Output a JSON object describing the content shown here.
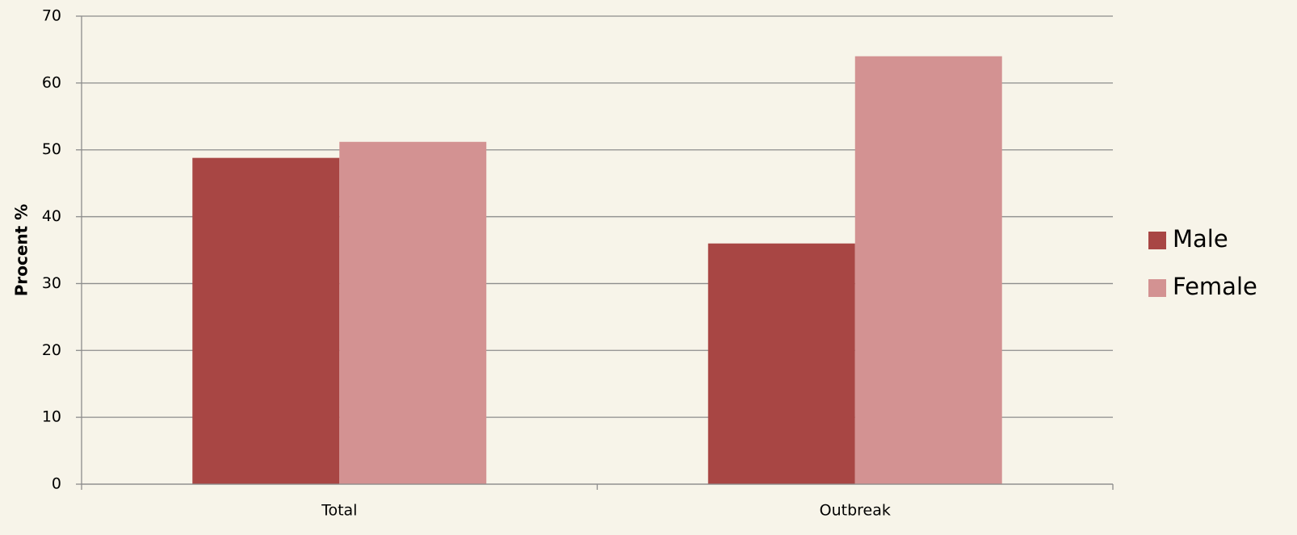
{
  "chart_data": {
    "type": "bar",
    "y_label": "Procent  %",
    "categories": [
      "Total",
      "Outbreak"
    ],
    "series": [
      {
        "name": "Male",
        "color": "#a84644",
        "values": [
          48.8,
          36
        ]
      },
      {
        "name": "Female",
        "color": "#d39292",
        "values": [
          51.2,
          64
        ]
      }
    ],
    "ylim": [
      0,
      70
    ],
    "yticks": [
      0,
      10,
      20,
      30,
      40,
      50,
      60,
      70
    ],
    "grid": true,
    "legend": "right"
  }
}
